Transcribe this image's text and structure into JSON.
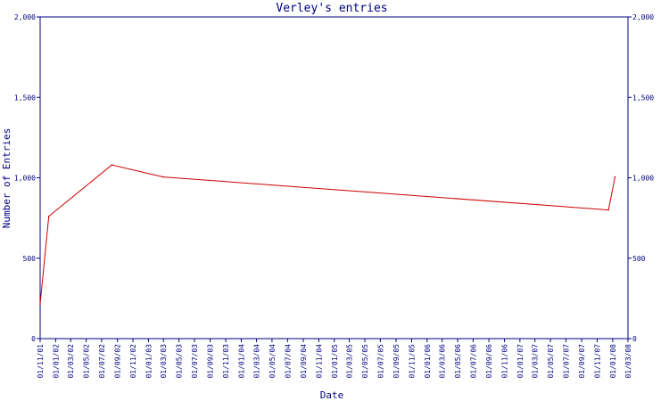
{
  "chart_data": {
    "type": "line",
    "title": "Verley's entries",
    "xlabel": "Date",
    "ylabel": "Number of Entries",
    "ylim": [
      0,
      2000
    ],
    "y_ticks": [
      "0",
      "500",
      "1,000",
      "1,500",
      "2,000"
    ],
    "y_tick_values": [
      0,
      500,
      1000,
      1500,
      2000
    ],
    "x_tick_labels": [
      "01/11/01",
      "01/01/02",
      "01/03/02",
      "01/05/02",
      "01/07/02",
      "01/09/02",
      "01/11/02",
      "01/01/03",
      "01/03/03",
      "01/05/03",
      "01/07/03",
      "01/09/03",
      "01/11/03",
      "01/01/04",
      "01/03/04",
      "01/05/04",
      "01/07/04",
      "01/09/04",
      "01/11/04",
      "01/01/05",
      "01/03/05",
      "01/05/05",
      "01/07/05",
      "01/09/05",
      "01/11/05",
      "01/01/06",
      "01/03/06",
      "01/05/06",
      "01/07/06",
      "01/09/06",
      "01/11/06",
      "01/01/07",
      "01/03/07",
      "01/05/07",
      "01/07/07",
      "01/09/07",
      "01/11/07",
      "01/01/08",
      "01/03/08"
    ],
    "x_tick_dates": [
      "2001-11-01",
      "2002-01-01",
      "2002-03-01",
      "2002-05-01",
      "2002-07-01",
      "2002-09-01",
      "2002-11-01",
      "2003-01-01",
      "2003-03-01",
      "2003-05-01",
      "2003-07-01",
      "2003-09-01",
      "2003-11-01",
      "2004-01-01",
      "2004-03-01",
      "2004-05-01",
      "2004-07-01",
      "2004-09-01",
      "2004-11-01",
      "2005-01-01",
      "2005-03-01",
      "2005-05-01",
      "2005-07-01",
      "2005-09-01",
      "2005-11-01",
      "2006-01-01",
      "2006-03-01",
      "2006-05-01",
      "2006-07-01",
      "2006-09-01",
      "2006-11-01",
      "2007-01-01",
      "2007-03-01",
      "2007-05-01",
      "2007-07-01",
      "2007-09-01",
      "2007-11-01",
      "2008-01-01",
      "2008-03-01"
    ],
    "series": [
      {
        "color": "#cc0000",
        "x": [
          "2001-11-01",
          "2001-12-05",
          "2002-08-10",
          "2003-03-01",
          "2007-12-15",
          "2008-01-10"
        ],
        "y": [
          215,
          760,
          1080,
          1005,
          800,
          1005
        ]
      }
    ],
    "grid": false,
    "axis_color": "#000080",
    "background": "#ffffff"
  }
}
